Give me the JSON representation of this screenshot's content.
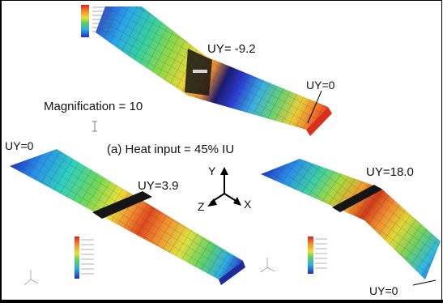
{
  "labels": {
    "top_uy": "UY= -9.2",
    "top_right_uy": "UY=0",
    "magnification": "Magnification = 10",
    "left_uy": "UY=0",
    "caption": "(a) Heat input = 45% IU",
    "left_center_uy": "UY=3.9",
    "right_uy": "UY=18.0",
    "bottom_right_uy": "UY=0",
    "axis_y": "Y",
    "axis_z": "Z",
    "axis_x": "X"
  },
  "colors": {
    "contour_low": "#1a34c8",
    "contour_high": "#e8201a",
    "weld_band": "#151515",
    "mesh_line": "#3a3a3a"
  }
}
